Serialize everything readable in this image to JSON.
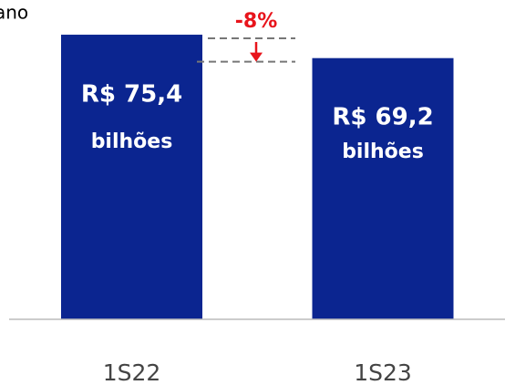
{
  "chart_data": {
    "type": "bar",
    "title": "ano",
    "categories": [
      "1S22",
      "1S23"
    ],
    "values": [
      75.4,
      69.2
    ],
    "value_labels": [
      "R$ 75,4",
      "R$ 69,2"
    ],
    "value_unit": "bilhões",
    "annotation": "-8%",
    "color": "#0b2590",
    "annotation_color": "#e8141b",
    "ylim": [
      0,
      80
    ],
    "grid": false
  }
}
